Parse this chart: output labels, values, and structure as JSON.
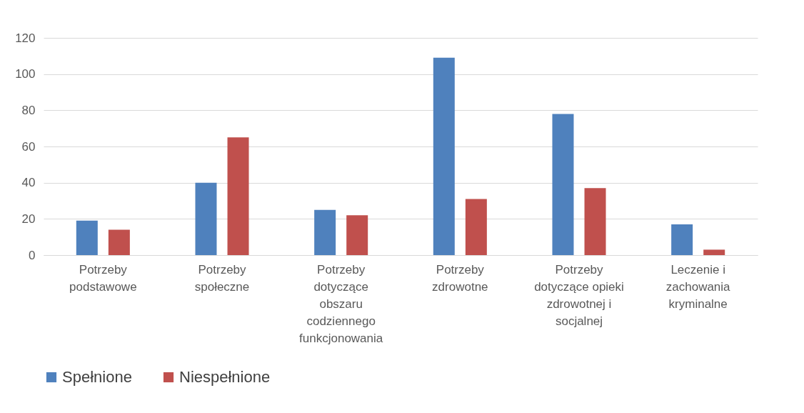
{
  "chart_data": {
    "type": "bar",
    "categories": [
      "Potrzeby podstawowe",
      "Potrzeby społeczne",
      "Potrzeby dotyczące obszaru codziennego funkcjonowania",
      "Potrzeby zdrowotne",
      "Potrzeby dotyczące opieki zdrowotnej i socjalnej",
      "Leczenie i zachowania kryminalne"
    ],
    "series": [
      {
        "name": "Spełnione",
        "color": "#4f81bd",
        "values": [
          19,
          40,
          25,
          109,
          78,
          17
        ]
      },
      {
        "name": "Niespełnione",
        "color": "#c0504d",
        "values": [
          14,
          65,
          22,
          31,
          37,
          3
        ]
      }
    ],
    "ylim": [
      0,
      120
    ],
    "yticks": [
      0,
      20,
      40,
      60,
      80,
      100,
      120
    ],
    "grid": "y",
    "legend": "bottom"
  }
}
